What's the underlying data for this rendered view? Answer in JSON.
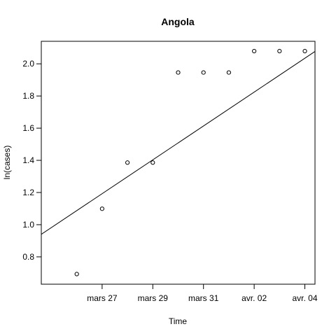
{
  "chart_data": {
    "type": "scatter",
    "title": "Angola",
    "xlabel": "Time",
    "ylabel": "ln(cases)",
    "x": [
      "2020-03-26",
      "2020-03-27",
      "2020-03-28",
      "2020-03-29",
      "2020-03-30",
      "2020-03-31",
      "2020-04-01",
      "2020-04-02",
      "2020-04-03",
      "2020-04-04"
    ],
    "y": [
      0.693,
      1.099,
      1.386,
      1.386,
      1.946,
      1.946,
      1.946,
      2.079,
      2.079,
      2.079
    ],
    "x_ticks": [
      "mars 27",
      "mars 29",
      "mars 31",
      "avr. 02",
      "avr. 04"
    ],
    "x_tick_values": [
      "2020-03-27",
      "2020-03-29",
      "2020-03-31",
      "2020-04-02",
      "2020-04-04"
    ],
    "y_ticks": [
      "0.8",
      "1.0",
      "1.2",
      "1.4",
      "1.6",
      "1.8",
      "2.0"
    ],
    "y_tick_values": [
      0.8,
      1.0,
      1.2,
      1.4,
      1.6,
      1.8,
      2.0
    ],
    "xlim": [
      "2020-03-25",
      "2020-04-04"
    ],
    "ylim": [
      0.63,
      2.14
    ],
    "fit_line": {
      "from": {
        "x": "2020-03-25",
        "y": 0.94
      },
      "to": {
        "x": "2020-04-05",
        "y": 2.14
      }
    },
    "grid": false,
    "legend": "none"
  }
}
